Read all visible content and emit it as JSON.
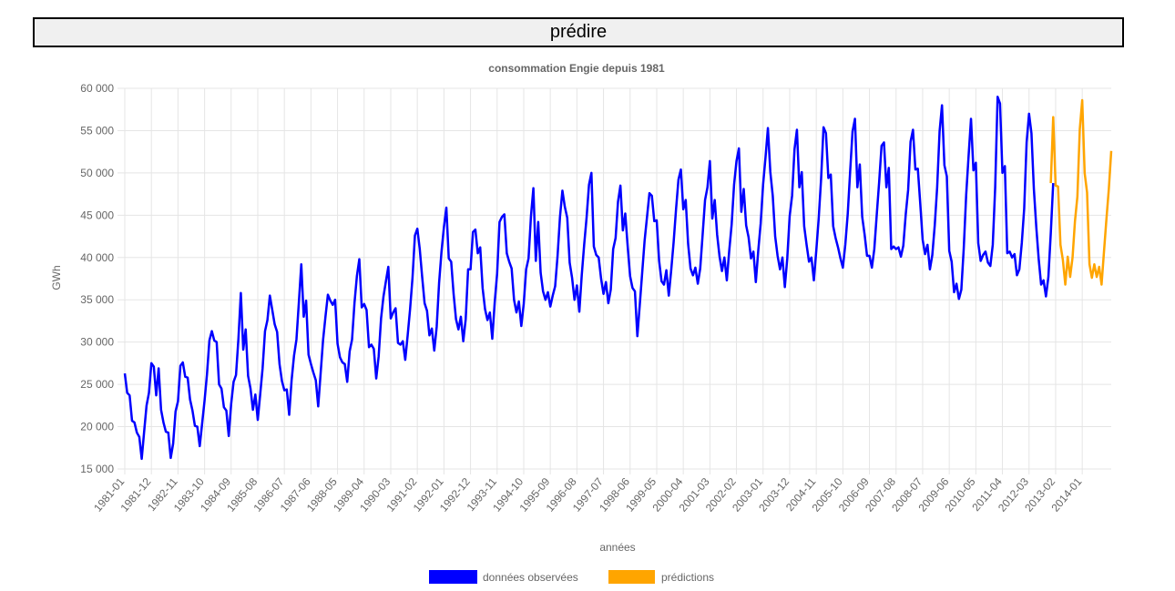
{
  "predict_button": {
    "label": "prédire"
  },
  "chart_data": {
    "type": "line",
    "title": "consommation Engie depuis 1981",
    "xlabel": "années",
    "ylabel": "GWh",
    "ylim": [
      15000,
      60000
    ],
    "yticks": [
      15000,
      20000,
      25000,
      30000,
      35000,
      40000,
      45000,
      50000,
      55000,
      60000
    ],
    "ytick_labels": [
      "15 000",
      "20 000",
      "25 000",
      "30 000",
      "35 000",
      "40 000",
      "45 000",
      "50 000",
      "55 000",
      "60 000"
    ],
    "xticks": [
      "1981-01",
      "1981-12",
      "1982-11",
      "1983-10",
      "1984-09",
      "1985-08",
      "1986-07",
      "1987-06",
      "1988-05",
      "1989-04",
      "1990-03",
      "1991-02",
      "1992-01",
      "1992-12",
      "1993-11",
      "1994-10",
      "1995-09",
      "1996-08",
      "1997-07",
      "1998-06",
      "1999-05",
      "2000-04",
      "2001-03",
      "2002-02",
      "2003-01",
      "2003-12",
      "2004-11",
      "2005-10",
      "2006-09",
      "2007-08",
      "2008-07",
      "2009-06",
      "2010-05",
      "2011-04",
      "2012-03",
      "2013-02",
      "2014-01"
    ],
    "start": "1981-01",
    "series": [
      {
        "name": "données observées",
        "color": "#0000ff",
        "values": [
          26300,
          24000,
          23700,
          20700,
          20500,
          19300,
          18800,
          16200,
          19400,
          22500,
          24000,
          27500,
          27100,
          23700,
          26900,
          22000,
          20500,
          19400,
          19300,
          16300,
          18000,
          21800,
          23000,
          27200,
          27600,
          25900,
          25800,
          23200,
          21900,
          20100,
          20000,
          17700,
          20400,
          23100,
          26200,
          30200,
          31300,
          30200,
          30000,
          25000,
          24500,
          22300,
          21900,
          18900,
          22700,
          25300,
          26100,
          30400,
          35800,
          29100,
          31500,
          26000,
          24500,
          22000,
          23800,
          20800,
          23800,
          26900,
          31300,
          32600,
          35500,
          33800,
          32100,
          31200,
          27400,
          25400,
          24300,
          24400,
          21400,
          25500,
          28400,
          30300,
          34700,
          39200,
          33000,
          34900,
          28500,
          27400,
          26400,
          25500,
          22400,
          26300,
          30200,
          33000,
          35600,
          34900,
          34400,
          35000,
          29800,
          28200,
          27600,
          27400,
          25300,
          28900,
          30300,
          34600,
          37800,
          39800,
          34100,
          34500,
          33800,
          29400,
          29700,
          29200,
          25700,
          28300,
          32800,
          35400,
          37200,
          38900,
          32800,
          33500,
          34000,
          29900,
          29700,
          30100,
          27900,
          30800,
          33900,
          37600,
          42600,
          43400,
          41000,
          37700,
          34600,
          33700,
          30800,
          31600,
          29000,
          31800,
          37000,
          40700,
          43600,
          45900,
          39900,
          39500,
          35700,
          32700,
          31500,
          33000,
          30100,
          32700,
          38600,
          38600,
          43000,
          43300,
          40500,
          41200,
          36400,
          33900,
          32600,
          33500,
          30400,
          34700,
          38100,
          44200,
          44800,
          45100,
          40500,
          39500,
          38700,
          35000,
          33500,
          34800,
          31900,
          34500,
          38600,
          39900,
          44900,
          48200,
          39600,
          44200,
          38200,
          36000,
          35000,
          35900,
          34200,
          35500,
          36600,
          40200,
          44800,
          47900,
          46000,
          44700,
          39400,
          37600,
          35000,
          36700,
          33600,
          37900,
          41500,
          44700,
          48600,
          50000,
          41300,
          40300,
          40000,
          37500,
          35700,
          37100,
          34600,
          36200,
          41000,
          42300,
          46600,
          48500,
          43200,
          45200,
          41300,
          37800,
          36400,
          36000,
          30700,
          34400,
          38200,
          42000,
          44800,
          47600,
          47300,
          44300,
          44400,
          39600,
          37200,
          36800,
          38500,
          35500,
          38500,
          41800,
          45700,
          49200,
          50400,
          45700,
          46800,
          41600,
          38700,
          37900,
          38800,
          36900,
          38700,
          42700,
          46800,
          48300,
          51400,
          44600,
          46800,
          42700,
          40100,
          38400,
          40000,
          37300,
          40800,
          43900,
          48600,
          51400,
          52900,
          45400,
          48100,
          43800,
          42400,
          39900,
          40700,
          37100,
          40800,
          44000,
          48600,
          51800,
          55300,
          50100,
          47300,
          42500,
          40200,
          38600,
          40000,
          36500,
          39900,
          44900,
          47300,
          52800,
          55100,
          48300,
          50100,
          43700,
          41500,
          39500,
          40000,
          37300,
          40800,
          44600,
          49300,
          55400,
          54700,
          49400,
          49800,
          43700,
          42300,
          41200,
          39900,
          38800,
          41500,
          45100,
          50100,
          54900,
          56400,
          48300,
          51000,
          44800,
          42700,
          40200,
          40200,
          38800,
          41000,
          45000,
          48900,
          53200,
          53600,
          48300,
          50600,
          41000,
          41300,
          41000,
          41200,
          40100,
          41400,
          45100,
          48000,
          53700,
          55100,
          50400,
          50500,
          46400,
          42100,
          40400,
          41500,
          38600,
          40300,
          43800,
          48300,
          54900,
          58000,
          50900,
          49600,
          40800,
          39500,
          35900,
          36900,
          35100,
          36200,
          41100,
          47400,
          52000,
          56400,
          50300,
          51200,
          41700,
          39600,
          40300,
          40700,
          39400,
          39000,
          41500,
          48300,
          59000,
          58200,
          50000,
          50800,
          40500,
          40700,
          40000,
          40400,
          37900,
          38600,
          41700,
          45800,
          53600,
          57000,
          54700,
          48100,
          43600,
          39800,
          36800,
          37300,
          35400,
          37700,
          42900,
          48800
        ]
      },
      {
        "name": "prédictions",
        "color": "#ffa500",
        "offset": 383,
        "values": [
          48800,
          56600,
          48500,
          48400,
          41500,
          39700,
          36800,
          40100,
          37700,
          40000,
          44300,
          47200,
          55200,
          58600,
          50000,
          47700,
          39200,
          37600,
          39200,
          37700,
          38900,
          36800,
          40700,
          44500,
          48100,
          52600
        ]
      }
    ],
    "legend": [
      {
        "label": "données observées",
        "color": "#0000ff"
      },
      {
        "label": "prédictions",
        "color": "#ffa500"
      }
    ]
  }
}
